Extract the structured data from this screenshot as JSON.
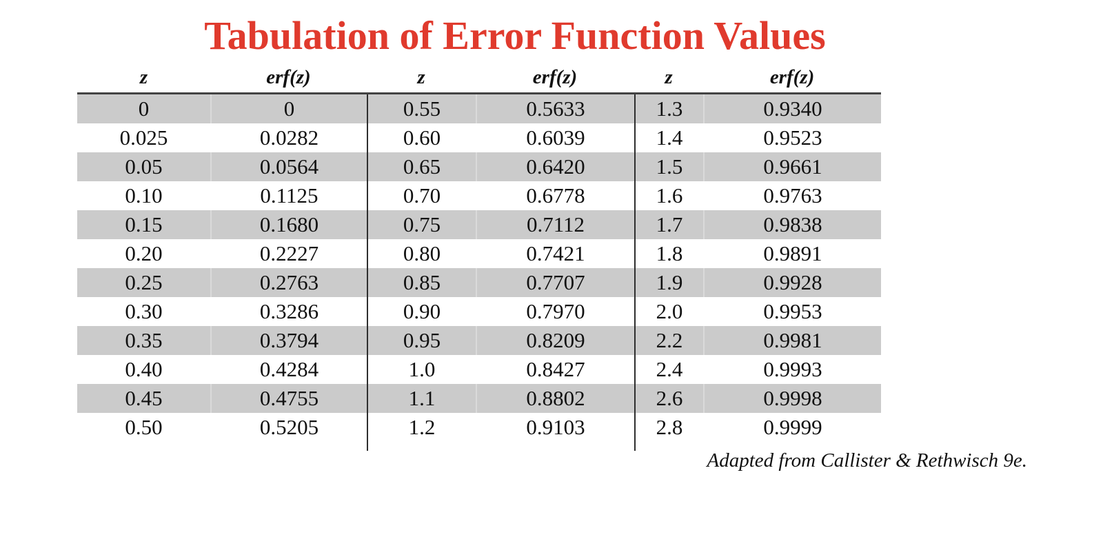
{
  "title": "Tabulation of Error Function Values",
  "attribution": "Adapted from Callister & Rethwisch 9e.",
  "colors": {
    "title_red": "#e03a2d",
    "row_shading_gray": "#cbcbcb",
    "header_rule": "#434343",
    "divider_line": "#2e2e2e"
  },
  "table": {
    "headers": [
      "z",
      "erf(z)",
      "z",
      "erf(z)",
      "z",
      "erf(z)"
    ],
    "rows": [
      [
        "0",
        "0",
        "0.55",
        "0.5633",
        "1.3",
        "0.9340"
      ],
      [
        "0.025",
        "0.0282",
        "0.60",
        "0.6039",
        "1.4",
        "0.9523"
      ],
      [
        "0.05",
        "0.0564",
        "0.65",
        "0.6420",
        "1.5",
        "0.9661"
      ],
      [
        "0.10",
        "0.1125",
        "0.70",
        "0.6778",
        "1.6",
        "0.9763"
      ],
      [
        "0.15",
        "0.1680",
        "0.75",
        "0.7112",
        "1.7",
        "0.9838"
      ],
      [
        "0.20",
        "0.2227",
        "0.80",
        "0.7421",
        "1.8",
        "0.9891"
      ],
      [
        "0.25",
        "0.2763",
        "0.85",
        "0.7707",
        "1.9",
        "0.9928"
      ],
      [
        "0.30",
        "0.3286",
        "0.90",
        "0.7970",
        "2.0",
        "0.9953"
      ],
      [
        "0.35",
        "0.3794",
        "0.95",
        "0.8209",
        "2.2",
        "0.9981"
      ],
      [
        "0.40",
        "0.4284",
        "1.0",
        "0.8427",
        "2.4",
        "0.9993"
      ],
      [
        "0.45",
        "0.4755",
        "1.1",
        "0.8802",
        "2.6",
        "0.9998"
      ],
      [
        "0.50",
        "0.5205",
        "1.2",
        "0.9103",
        "2.8",
        "0.9999"
      ]
    ]
  },
  "chart_data": {
    "type": "table",
    "title": "Tabulation of Error Function Values",
    "columns": [
      "z",
      "erf(z)"
    ],
    "x": [
      0,
      0.025,
      0.05,
      0.1,
      0.15,
      0.2,
      0.25,
      0.3,
      0.35,
      0.4,
      0.45,
      0.5,
      0.55,
      0.6,
      0.65,
      0.7,
      0.75,
      0.8,
      0.85,
      0.9,
      0.95,
      1.0,
      1.1,
      1.2,
      1.3,
      1.4,
      1.5,
      1.6,
      1.7,
      1.8,
      1.9,
      2.0,
      2.2,
      2.4,
      2.6,
      2.8
    ],
    "values": [
      0,
      0.0282,
      0.0564,
      0.1125,
      0.168,
      0.2227,
      0.2763,
      0.3286,
      0.3794,
      0.4284,
      0.4755,
      0.5205,
      0.5633,
      0.6039,
      0.642,
      0.6778,
      0.7112,
      0.7421,
      0.7707,
      0.797,
      0.8209,
      0.8427,
      0.8802,
      0.9103,
      0.934,
      0.9523,
      0.9661,
      0.9763,
      0.9838,
      0.9891,
      0.9928,
      0.9953,
      0.9981,
      0.9993,
      0.9998,
      0.9999
    ]
  }
}
